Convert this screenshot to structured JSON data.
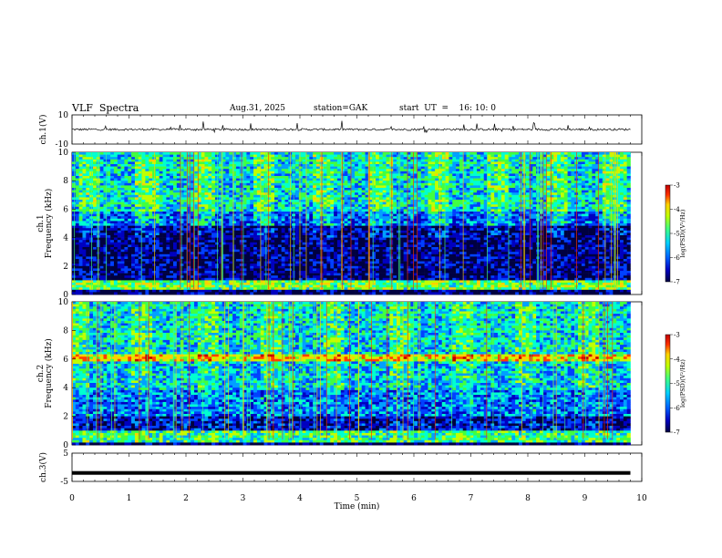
{
  "header": {
    "title": "VLF  Spectra",
    "date": "Aug.31, 2025",
    "station": "station=GAK",
    "start_ut": "start  UT  =    16: 10: 0"
  },
  "chart_data": [
    {
      "type": "line",
      "panel": "ch1-waveform",
      "ylabel": "ch.1(V)",
      "ylim": [
        -10,
        10
      ],
      "y_ticks": [
        "10",
        "-10"
      ],
      "xlim": [
        0,
        10
      ],
      "baseline": 0,
      "series": [
        {
          "values_description_free": true,
          "baseline": 0,
          "noise_amplitude": 1.0
        }
      ]
    },
    {
      "type": "heatmap",
      "panel": "ch1-spectrogram",
      "ylabel": "Frequency  (kHz)",
      "ylabel_prefix": "ch.1",
      "ylim": [
        0,
        10
      ],
      "y_ticks": [
        "10",
        "8",
        "6",
        "4",
        "2",
        "0"
      ],
      "xlim": [
        0,
        9.8
      ],
      "colorbar": {
        "label": "log(PSD)(V²/Hz)",
        "ticks": [
          "-3",
          "-4",
          "-5",
          "-6",
          "-7"
        ],
        "range": [
          -7,
          -3
        ]
      }
    },
    {
      "type": "heatmap",
      "panel": "ch2-spectrogram",
      "ylabel": "Frequency  (kHz)",
      "ylabel_prefix": "ch.2",
      "ylim": [
        0,
        10
      ],
      "y_ticks": [
        "10",
        "8",
        "6",
        "4",
        "2",
        "0"
      ],
      "xlim": [
        0,
        9.8
      ],
      "colorbar": {
        "label": "log(PSD)(V²/Hz)",
        "ticks": [
          "-3",
          "-4",
          "-5",
          "-6",
          "-7"
        ],
        "range": [
          -7,
          -3
        ]
      }
    },
    {
      "type": "line",
      "panel": "ch3-waveform",
      "ylabel": "ch.3(V)",
      "ylim": [
        -5,
        5
      ],
      "y_ticks": [
        "5",
        "-5"
      ],
      "xlim": [
        0,
        10
      ],
      "baseline": -2
    }
  ],
  "x_axis": {
    "label": "Time  (min)",
    "ticks": [
      "0",
      "1",
      "2",
      "3",
      "4",
      "5",
      "6",
      "7",
      "8",
      "9",
      "10"
    ],
    "range": [
      0,
      10
    ]
  },
  "colors": {
    "colormap": [
      "#000040",
      "#0000c0",
      "#0040ff",
      "#00a0ff",
      "#00ffd0",
      "#40ff40",
      "#c0ff00",
      "#ffd000",
      "#ff4000",
      "#c00000"
    ]
  }
}
